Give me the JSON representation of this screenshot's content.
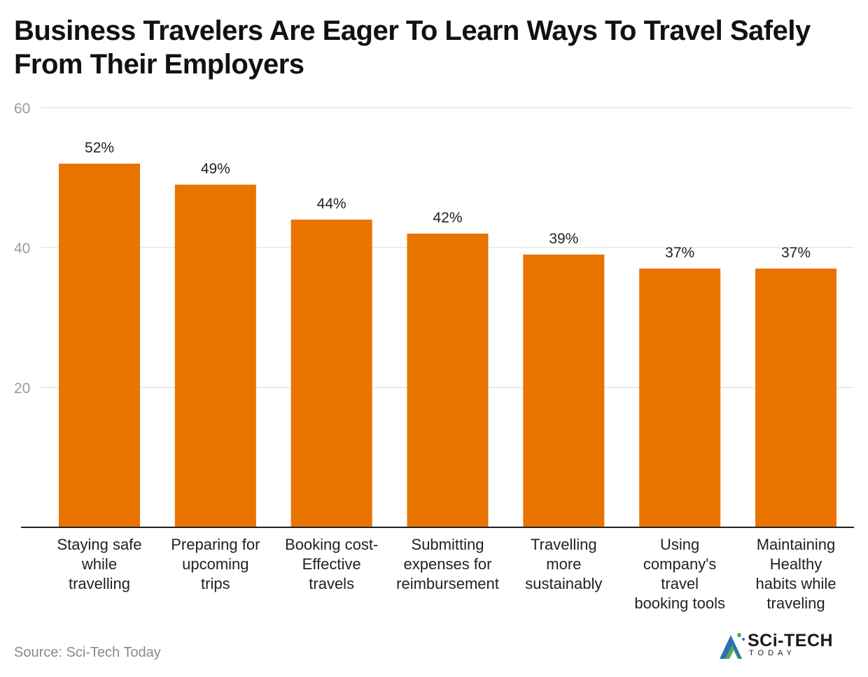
{
  "chart_data": {
    "type": "bar",
    "title": "Business Travelers Are Eager To Learn Ways To Travel Safely From Their Employers",
    "categories": [
      [
        "Staying safe",
        "while",
        "travelling"
      ],
      [
        "Preparing for",
        "upcoming",
        "trips"
      ],
      [
        "Booking cost-",
        "Effective",
        "travels"
      ],
      [
        "Submitting",
        "expenses for",
        "reimbursement"
      ],
      [
        "Travelling",
        "more",
        "sustainably"
      ],
      [
        "Using",
        "company's",
        "travel",
        "booking tools"
      ],
      [
        "Maintaining",
        "Healthy",
        "habits while",
        "traveling"
      ]
    ],
    "values": [
      52,
      49,
      44,
      42,
      39,
      37,
      37
    ],
    "value_labels": [
      "52%",
      "49%",
      "44%",
      "42%",
      "39%",
      "37%",
      "37%"
    ],
    "yticks": [
      20,
      40,
      60
    ],
    "ylim": [
      0,
      60
    ],
    "grid": true,
    "bar_color": "#E97400",
    "xlabel": "",
    "ylabel": ""
  },
  "footer": {
    "source": "Source: Sci-Tech Today",
    "logo_text": "SCi-TECH",
    "logo_subtext": "TODAY"
  },
  "colors": {
    "bar": "#E97400",
    "grid": "#e6e6e6",
    "axis": "#222222"
  }
}
